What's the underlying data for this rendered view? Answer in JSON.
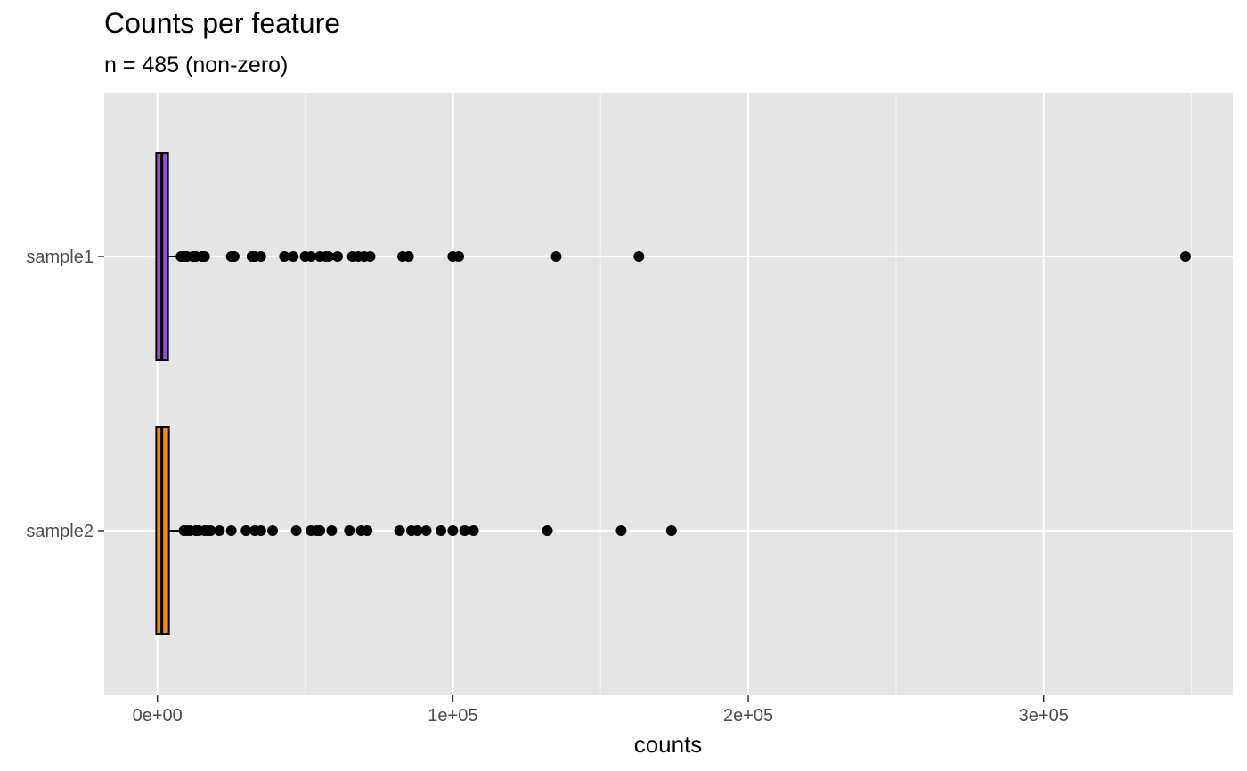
{
  "chart_data": {
    "type": "boxplot",
    "title": "Counts per feature",
    "subtitle": "n = 485 (non-zero)",
    "xlabel": "counts",
    "ylabel": "",
    "xlim": [
      -18000,
      364000
    ],
    "x_ticks": [
      {
        "value": 0,
        "label": "0e+00"
      },
      {
        "value": 100000,
        "label": "1e+05"
      },
      {
        "value": 200000,
        "label": "2e+05"
      },
      {
        "value": 300000,
        "label": "3e+05"
      }
    ],
    "grid": true,
    "legend": "none",
    "categories": [
      "sample1",
      "sample2"
    ],
    "series": [
      {
        "name": "sample1",
        "color": "#9b4dd6",
        "box": {
          "min": 0,
          "q1": 200,
          "median": 1500,
          "q3": 3000,
          "whisker_high": 7500
        },
        "outliers": [
          8000,
          9000,
          10000,
          12000,
          13000,
          15000,
          16000,
          25000,
          26000,
          32000,
          33000,
          35000,
          43000,
          46000,
          50000,
          52000,
          55000,
          57000,
          58000,
          61000,
          66000,
          68000,
          70000,
          72000,
          83000,
          85000,
          100000,
          102000,
          135000,
          163000,
          348000
        ]
      },
      {
        "name": "sample2",
        "color": "#f28a1c",
        "box": {
          "min": 0,
          "q1": 200,
          "median": 1500,
          "q3": 3300,
          "whisker_high": 8000
        },
        "outliers": [
          9000,
          10000,
          11000,
          13000,
          14000,
          16000,
          17000,
          18000,
          21000,
          25000,
          30000,
          33000,
          35000,
          39000,
          47000,
          52000,
          54000,
          55000,
          59000,
          65000,
          69000,
          71000,
          82000,
          86000,
          88000,
          91000,
          96000,
          100000,
          104000,
          107000,
          132000,
          157000,
          174000
        ]
      }
    ]
  }
}
